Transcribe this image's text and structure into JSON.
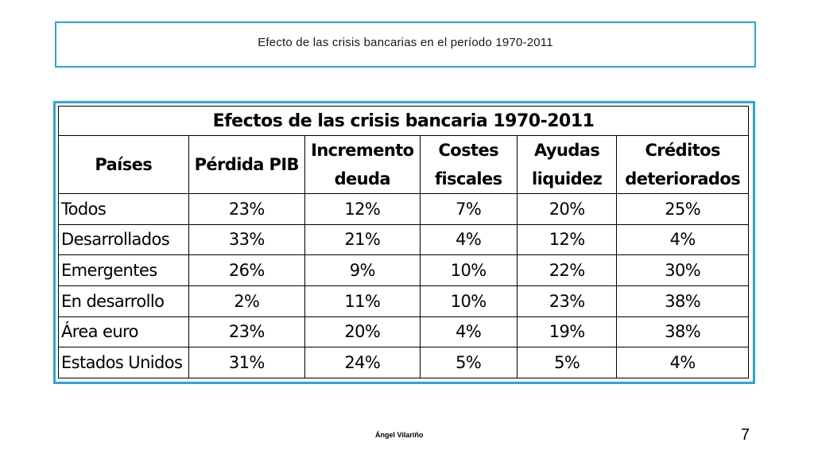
{
  "slide": {
    "title": "Efecto de las crisis bancarias en el período 1970-2011",
    "author": "Ángel Vilariño",
    "page_number": "7",
    "accent_color": "#2aa6dc"
  },
  "table": {
    "caption": "Efectos de las crisis bancaria 1970-2011",
    "headers": [
      [
        "Países"
      ],
      [
        "Pérdida PIB"
      ],
      [
        "Incremento",
        "deuda"
      ],
      [
        "Costes",
        "fiscales"
      ],
      [
        "Ayudas",
        "liquidez"
      ],
      [
        "Créditos",
        "deteriorados"
      ]
    ],
    "rows": [
      [
        "Todos",
        "23%",
        "12%",
        "7%",
        "20%",
        "25%"
      ],
      [
        "Desarrollados",
        "33%",
        "21%",
        "4%",
        "12%",
        "4%"
      ],
      [
        "Emergentes",
        "26%",
        "9%",
        "10%",
        "22%",
        "30%"
      ],
      [
        "En desarrollo",
        "2%",
        "11%",
        "10%",
        "23%",
        "38%"
      ],
      [
        "Área euro",
        "23%",
        "20%",
        "4%",
        "19%",
        "38%"
      ],
      [
        "Estados Unidos",
        "31%",
        "24%",
        "5%",
        "5%",
        "4%"
      ]
    ]
  }
}
